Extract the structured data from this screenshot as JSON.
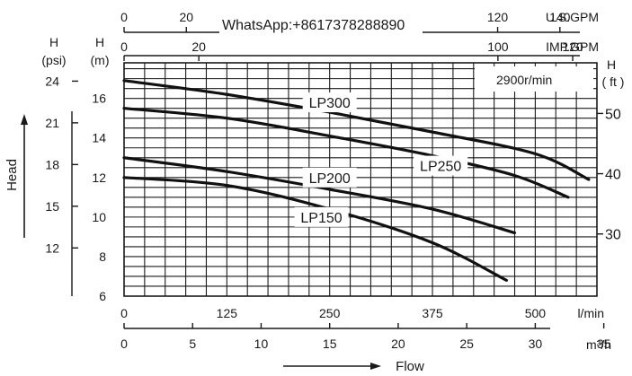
{
  "watermark": "WhatsApp:+8617378288890",
  "speed_label": "2900r/min",
  "axis_labels": {
    "head": "Head",
    "flow": "Flow",
    "h_psi": [
      "H",
      "(psi)"
    ],
    "h_m": [
      "H",
      "(m)"
    ],
    "h_ft": [
      "H",
      "( ft )"
    ],
    "lpm_unit": "l/min",
    "m3h_unit": "m³/h",
    "usgpm_unit": "U.S.GPM",
    "impgpm_unit": "IMP.GPM"
  },
  "chart_data": {
    "type": "line",
    "xlabel": "Flow",
    "ylabel": "Head",
    "xlim": [
      0,
      575
    ],
    "ylim": [
      6,
      17.8
    ],
    "grid": true,
    "speed": "2900r/min",
    "series": [
      {
        "name": "LP300",
        "x": [
          0,
          125,
          250,
          375,
          500,
          565
        ],
        "y": [
          16.9,
          16.2,
          15.3,
          14.3,
          13.2,
          11.9
        ]
      },
      {
        "name": "LP250",
        "x": [
          0,
          125,
          250,
          375,
          475,
          540
        ],
        "y": [
          15.5,
          15.0,
          14.1,
          13.1,
          12.1,
          11.0
        ]
      },
      {
        "name": "LP200",
        "x": [
          0,
          125,
          250,
          375,
          475
        ],
        "y": [
          13.0,
          12.3,
          11.4,
          10.4,
          9.2
        ]
      },
      {
        "name": "LP150",
        "x": [
          0,
          125,
          250,
          375,
          465
        ],
        "y": [
          12.0,
          11.6,
          10.4,
          8.7,
          6.8
        ]
      }
    ],
    "series_labels": [
      {
        "text": "LP300",
        "x": 250,
        "y": 15.8
      },
      {
        "text": "LP250",
        "x": 385,
        "y": 12.6
      },
      {
        "text": "LP200",
        "x": 250,
        "y": 12.0
      },
      {
        "text": "LP150",
        "x": 240,
        "y": 10.0
      }
    ],
    "axes": {
      "y_m": {
        "ticks": [
          16,
          14,
          12,
          10,
          8,
          6
        ]
      },
      "y_psi": {
        "ticks": [
          24,
          21,
          18,
          15,
          12
        ],
        "m_per_unit": 0.70307
      },
      "y_ft": {
        "ticks": [
          50,
          40,
          30
        ],
        "m_per_unit": 0.3048
      },
      "x_lpm": {
        "ticks": [
          0,
          125,
          250,
          375,
          500
        ]
      },
      "x_m3h": {
        "ticks": [
          0,
          5,
          10,
          15,
          20,
          25,
          30,
          35
        ],
        "lpm_per_unit": 16.6667
      },
      "x_usgpm": {
        "ticks": [
          "0",
          "20",
          "120",
          "140"
        ],
        "tick_values": [
          0,
          20,
          120,
          140
        ],
        "lpm_per_unit": 3.78541
      },
      "x_impgpm": {
        "ticks": [
          "0",
          "20",
          "100",
          "120"
        ],
        "tick_values": [
          0,
          20,
          100,
          120
        ],
        "lpm_per_unit": 4.54609
      }
    }
  }
}
